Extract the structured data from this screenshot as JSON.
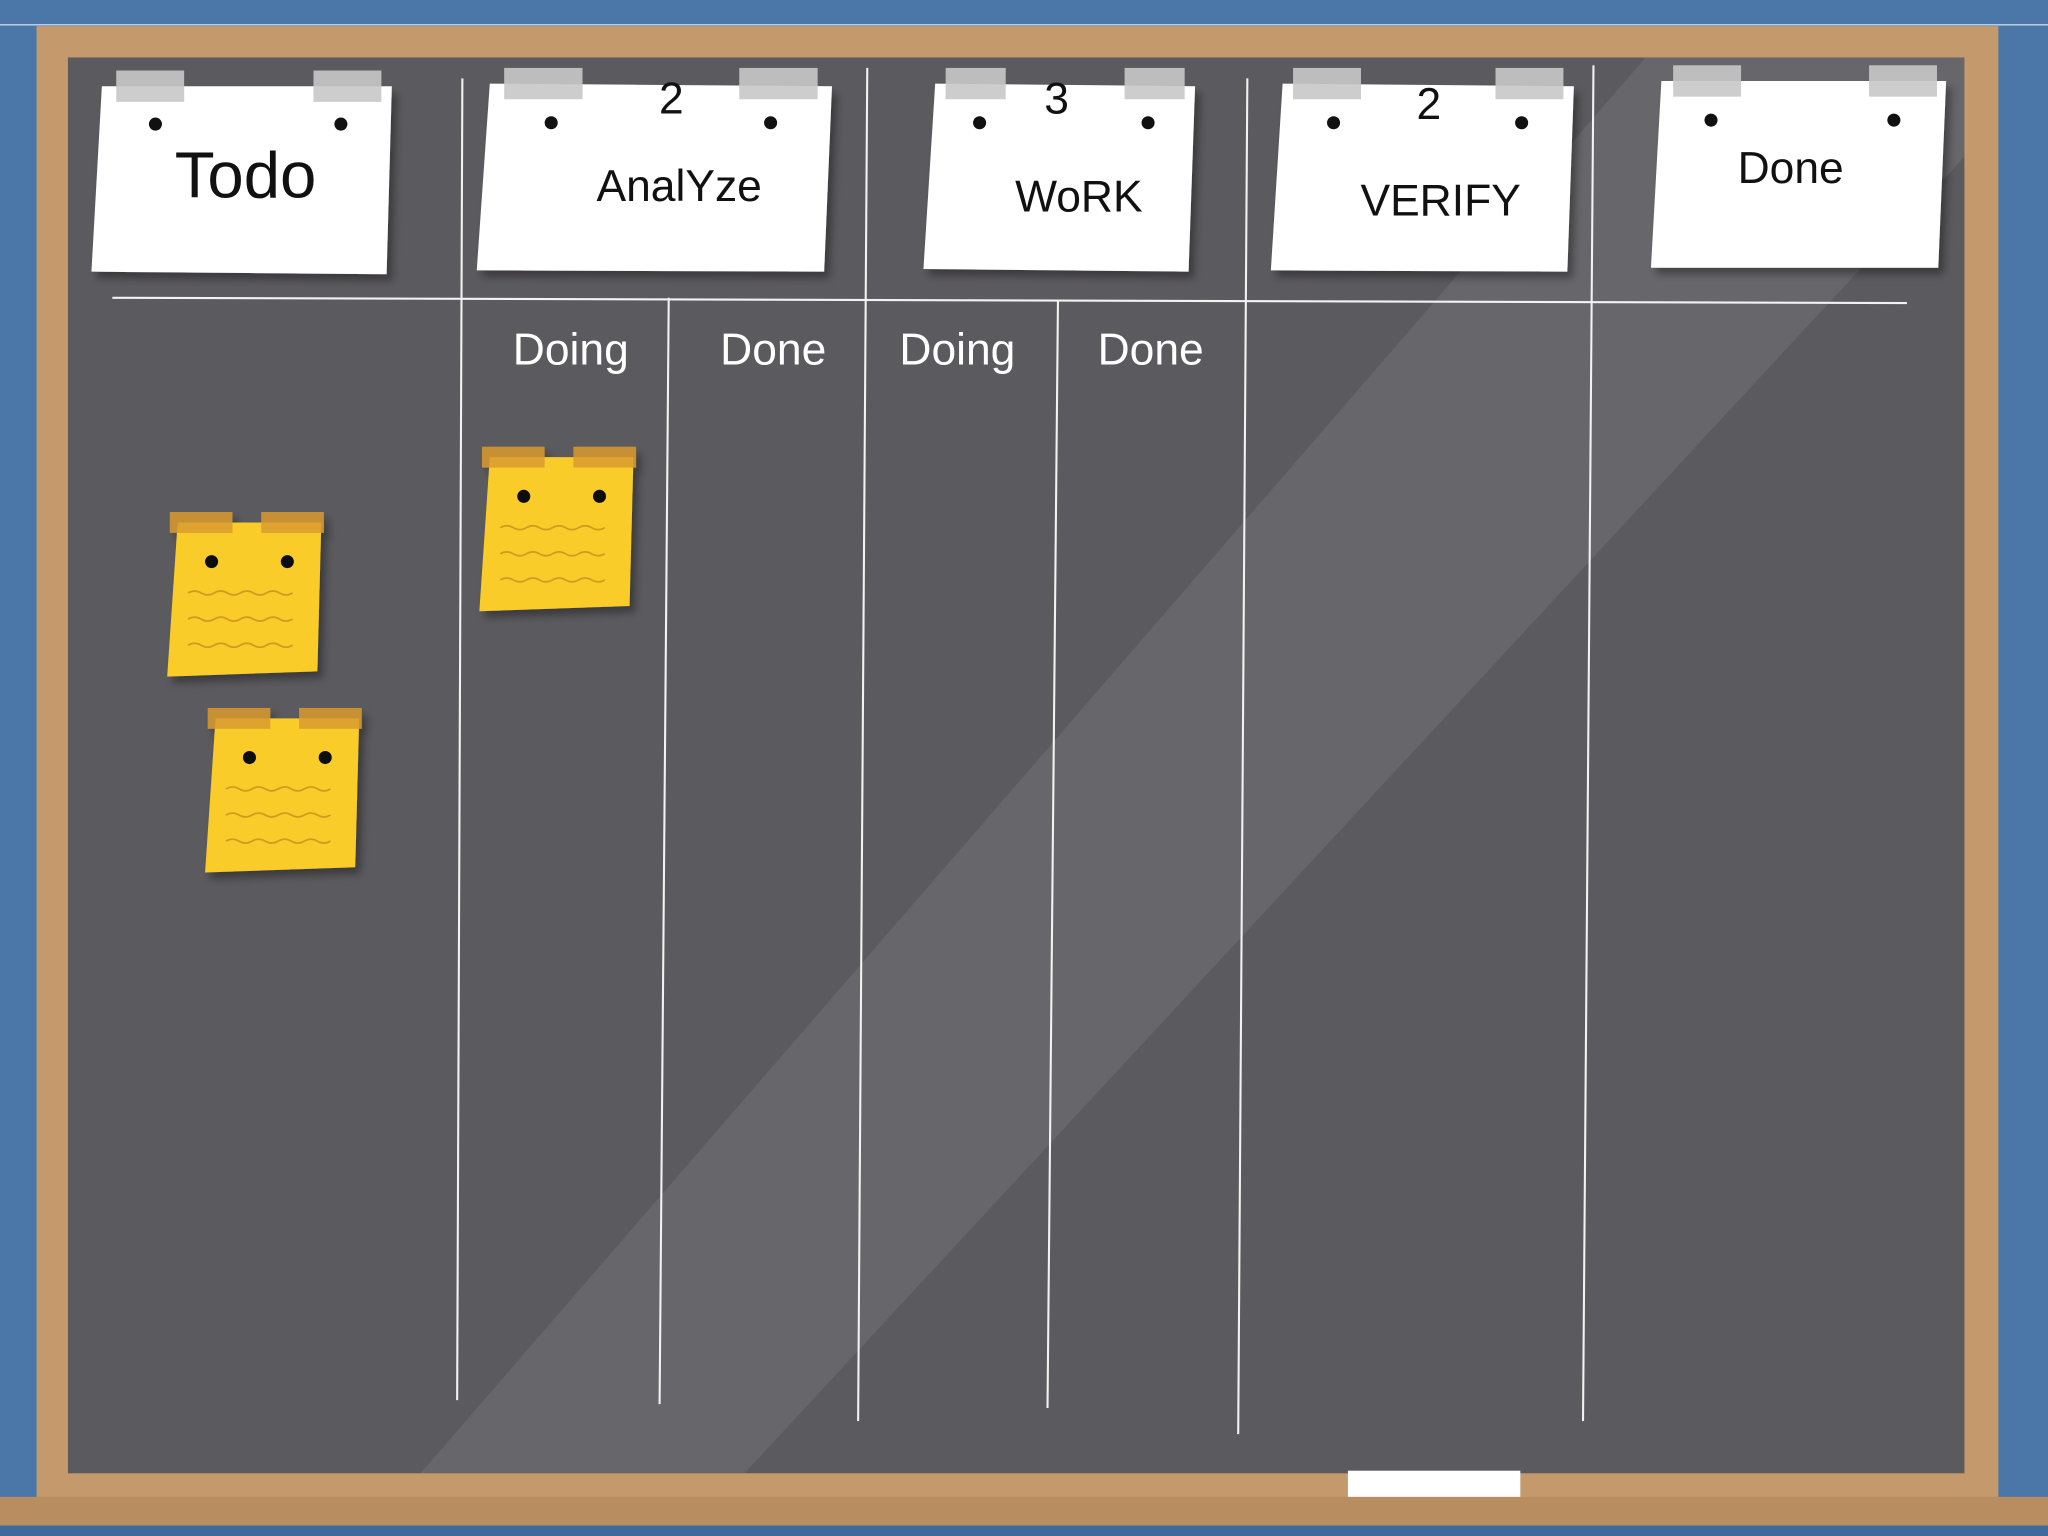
{
  "columns": [
    {
      "title": "Todo"
    },
    {
      "title": "AnalYze",
      "limit": 2,
      "subcolumns": [
        "Doing",
        "Done"
      ]
    },
    {
      "title": "WoRK",
      "limit": 3,
      "subcolumns": [
        "Doing",
        "Done"
      ]
    },
    {
      "title": "VERIFY",
      "limit": 2
    },
    {
      "title": "Done"
    }
  ]
}
